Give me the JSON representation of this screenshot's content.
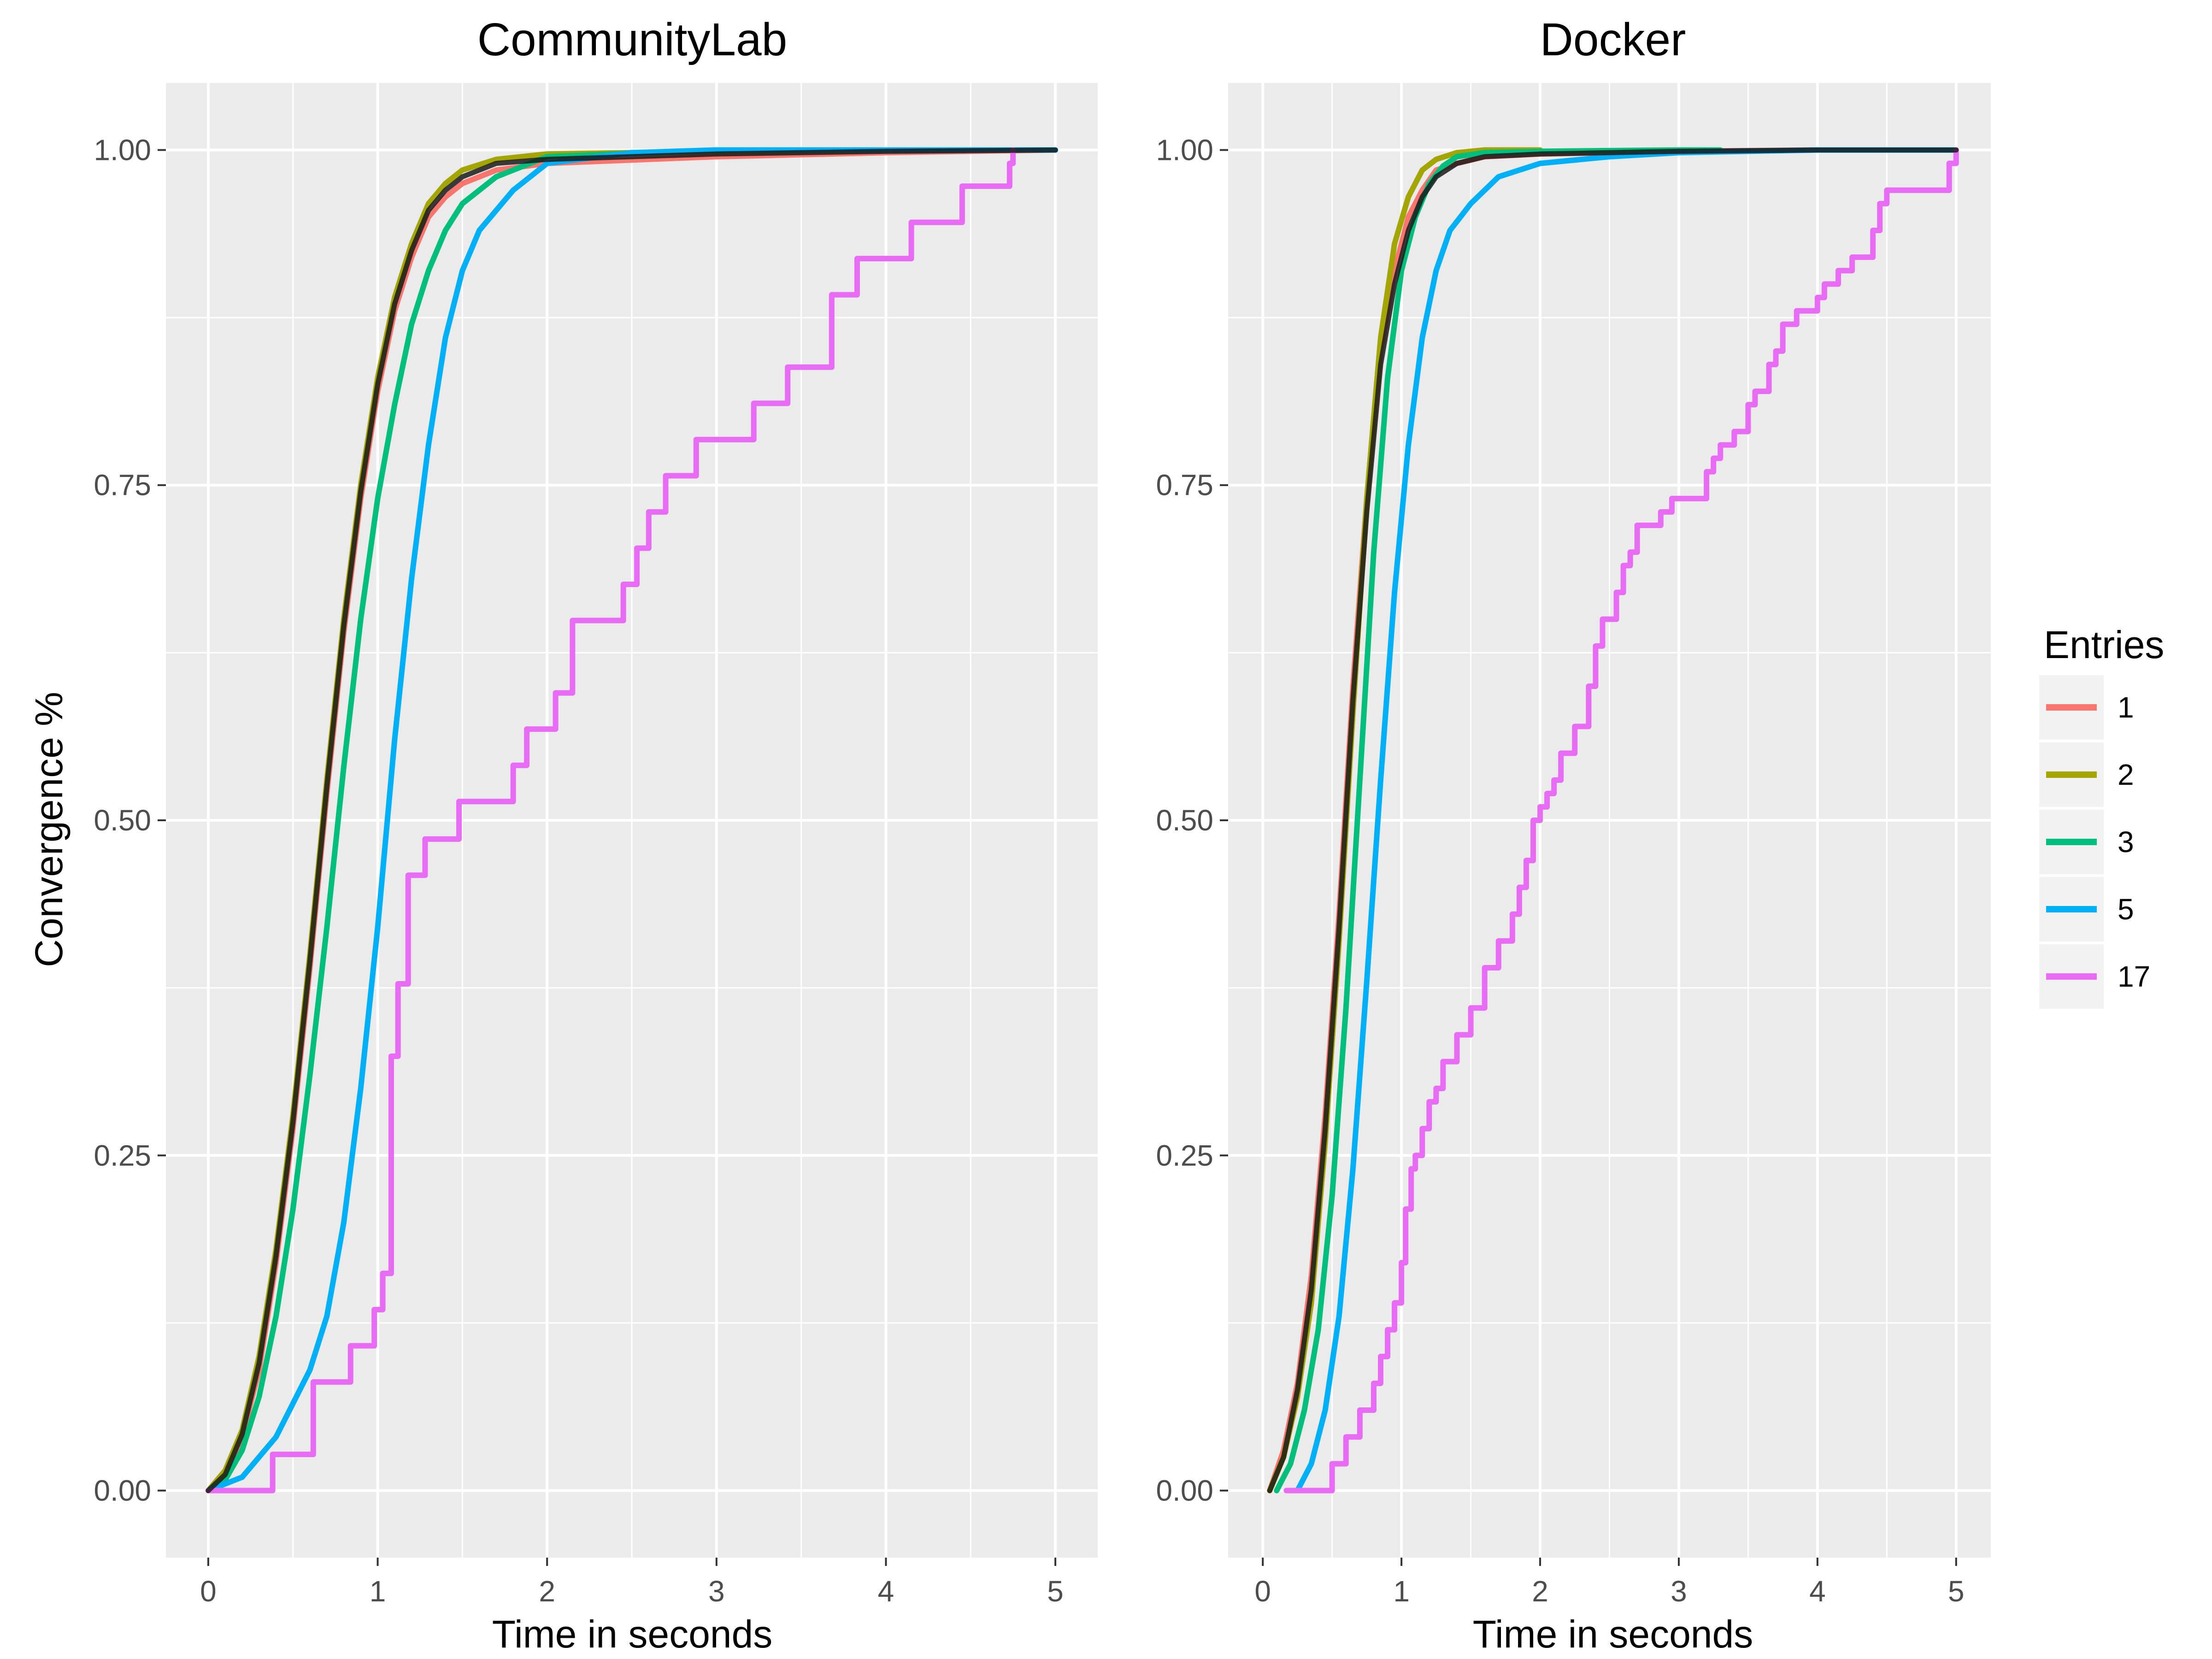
{
  "chart_data": [
    {
      "type": "line",
      "title": "CommunityLab",
      "xlabel": "Time in seconds",
      "ylabel": "Convergence %",
      "xlim": [
        -0.25,
        5.25
      ],
      "ylim": [
        -0.05,
        1.05
      ],
      "xticks": [
        0,
        1,
        2,
        3,
        4,
        5
      ],
      "yticks": [
        0.0,
        0.25,
        0.5,
        0.75,
        1.0
      ],
      "ytick_labels": [
        "0.00",
        "0.25",
        "0.50",
        "0.75",
        "1.00"
      ],
      "grid": true,
      "series": [
        {
          "name": "1",
          "x": [
            0,
            0.1,
            0.2,
            0.3,
            0.4,
            0.5,
            0.6,
            0.7,
            0.8,
            0.9,
            1.0,
            1.1,
            1.2,
            1.3,
            1.4,
            1.5,
            1.7,
            2.0,
            3.0,
            4.0,
            5.0
          ],
          "y": [
            0,
            0.01,
            0.04,
            0.09,
            0.17,
            0.27,
            0.39,
            0.52,
            0.64,
            0.74,
            0.82,
            0.88,
            0.92,
            0.95,
            0.965,
            0.975,
            0.985,
            0.99,
            0.995,
            0.998,
            1.0
          ]
        },
        {
          "name": "2",
          "x": [
            0,
            0.1,
            0.2,
            0.3,
            0.4,
            0.5,
            0.6,
            0.7,
            0.8,
            0.9,
            1.0,
            1.1,
            1.2,
            1.3,
            1.4,
            1.5,
            1.7,
            2.0,
            3.0,
            4.0,
            5.0
          ],
          "y": [
            0,
            0.015,
            0.045,
            0.1,
            0.18,
            0.28,
            0.4,
            0.53,
            0.65,
            0.75,
            0.83,
            0.89,
            0.93,
            0.96,
            0.975,
            0.985,
            0.993,
            0.997,
            0.999,
            1.0,
            1.0
          ]
        },
        {
          "name": "3",
          "x": [
            0,
            0.1,
            0.2,
            0.3,
            0.4,
            0.5,
            0.6,
            0.7,
            0.8,
            0.9,
            1.0,
            1.1,
            1.2,
            1.3,
            1.4,
            1.5,
            1.7,
            2.0,
            3.0,
            4.0,
            5.0
          ],
          "y": [
            0,
            0.008,
            0.03,
            0.07,
            0.13,
            0.21,
            0.31,
            0.42,
            0.54,
            0.65,
            0.74,
            0.81,
            0.87,
            0.91,
            0.94,
            0.96,
            0.98,
            0.995,
            1.0,
            1.0,
            1.0
          ]
        },
        {
          "name": "5",
          "x": [
            0,
            0.2,
            0.4,
            0.6,
            0.7,
            0.8,
            0.9,
            1.0,
            1.1,
            1.2,
            1.3,
            1.4,
            1.5,
            1.6,
            1.7,
            1.8,
            2.0,
            2.5,
            3.0,
            4.0,
            5.0
          ],
          "y": [
            0,
            0.01,
            0.04,
            0.09,
            0.13,
            0.2,
            0.3,
            0.42,
            0.56,
            0.68,
            0.78,
            0.86,
            0.91,
            0.94,
            0.955,
            0.97,
            0.99,
            0.998,
            1.0,
            1.0,
            1.0
          ]
        },
        {
          "name": "17",
          "step": true,
          "x": [
            0.0,
            0.38,
            0.62,
            0.84,
            0.98,
            1.03,
            1.08,
            1.12,
            1.18,
            1.28,
            1.48,
            1.8,
            1.88,
            2.05,
            2.15,
            2.45,
            2.53,
            2.6,
            2.7,
            2.88,
            3.22,
            3.42,
            3.68,
            3.83,
            4.15,
            4.45,
            4.73,
            4.75
          ],
          "y": [
            0.0,
            0.027,
            0.081,
            0.108,
            0.135,
            0.162,
            0.324,
            0.378,
            0.459,
            0.486,
            0.514,
            0.541,
            0.568,
            0.595,
            0.649,
            0.676,
            0.703,
            0.73,
            0.757,
            0.784,
            0.811,
            0.838,
            0.892,
            0.919,
            0.946,
            0.973,
            0.99,
            1.0
          ]
        },
        {
          "name": "",
          "x": [
            0,
            0.1,
            0.2,
            0.3,
            0.4,
            0.5,
            0.6,
            0.7,
            0.8,
            0.9,
            1.0,
            1.1,
            1.2,
            1.3,
            1.4,
            1.5,
            1.7,
            2.0,
            3.0,
            4.0,
            5.0
          ],
          "y": [
            0,
            0.012,
            0.042,
            0.095,
            0.175,
            0.275,
            0.395,
            0.525,
            0.645,
            0.745,
            0.825,
            0.885,
            0.925,
            0.955,
            0.97,
            0.98,
            0.99,
            0.993,
            0.997,
            0.999,
            1.0
          ]
        }
      ]
    },
    {
      "type": "line",
      "title": "Docker",
      "xlabel": "Time in seconds",
      "ylabel": "",
      "xlim": [
        -0.25,
        5.25
      ],
      "ylim": [
        -0.05,
        1.05
      ],
      "xticks": [
        0,
        1,
        2,
        3,
        4,
        5
      ],
      "yticks": [
        0.0,
        0.25,
        0.5,
        0.75,
        1.0
      ],
      "ytick_labels": [
        "0.00",
        "0.25",
        "0.50",
        "0.75",
        "1.00"
      ],
      "grid": true,
      "series": [
        {
          "name": "1",
          "x": [
            0.05,
            0.15,
            0.25,
            0.35,
            0.45,
            0.55,
            0.65,
            0.75,
            0.85,
            0.95,
            1.05,
            1.15,
            1.25,
            1.4,
            1.6,
            2.0,
            3.0,
            4.0,
            5.0
          ],
          "y": [
            0,
            0.03,
            0.08,
            0.16,
            0.28,
            0.43,
            0.6,
            0.74,
            0.85,
            0.91,
            0.95,
            0.97,
            0.985,
            0.99,
            0.995,
            0.997,
            0.999,
            1.0,
            1.0
          ]
        },
        {
          "name": "2",
          "x": [
            0.05,
            0.15,
            0.25,
            0.35,
            0.45,
            0.55,
            0.65,
            0.75,
            0.85,
            0.95,
            1.05,
            1.15,
            1.25,
            1.4,
            1.6,
            2.0
          ],
          "y": [
            0,
            0.025,
            0.07,
            0.14,
            0.26,
            0.41,
            0.58,
            0.74,
            0.86,
            0.93,
            0.965,
            0.985,
            0.993,
            0.998,
            1.0,
            1.0
          ]
        },
        {
          "name": "3",
          "x": [
            0.1,
            0.2,
            0.3,
            0.4,
            0.5,
            0.6,
            0.7,
            0.8,
            0.9,
            1.0,
            1.1,
            1.2,
            1.3,
            1.4,
            1.6,
            2.0,
            3.0,
            3.3
          ],
          "y": [
            0,
            0.02,
            0.06,
            0.12,
            0.22,
            0.36,
            0.53,
            0.7,
            0.83,
            0.91,
            0.95,
            0.975,
            0.988,
            0.995,
            0.998,
            0.999,
            1.0,
            1.0
          ]
        },
        {
          "name": "5",
          "x": [
            0.25,
            0.35,
            0.45,
            0.55,
            0.65,
            0.75,
            0.85,
            0.95,
            1.05,
            1.15,
            1.25,
            1.35,
            1.5,
            1.7,
            2.0,
            2.5,
            3.0,
            4.0,
            5.0
          ],
          "y": [
            0,
            0.02,
            0.06,
            0.13,
            0.24,
            0.38,
            0.53,
            0.67,
            0.78,
            0.86,
            0.91,
            0.94,
            0.96,
            0.98,
            0.99,
            0.995,
            0.998,
            1.0,
            1.0
          ]
        },
        {
          "name": "17",
          "step": true,
          "x": [
            0.17,
            0.5,
            0.6,
            0.7,
            0.8,
            0.85,
            0.9,
            0.95,
            1.0,
            1.03,
            1.07,
            1.1,
            1.15,
            1.2,
            1.25,
            1.3,
            1.4,
            1.5,
            1.6,
            1.65,
            1.7,
            1.8,
            1.85,
            1.9,
            1.95,
            2.0,
            2.05,
            2.1,
            2.15,
            2.25,
            2.35,
            2.4,
            2.45,
            2.55,
            2.6,
            2.65,
            2.7,
            2.8,
            2.87,
            2.95,
            3.2,
            3.25,
            3.3,
            3.4,
            3.5,
            3.55,
            3.65,
            3.7,
            3.75,
            3.85,
            4.0,
            4.05,
            4.15,
            4.25,
            4.4,
            4.45,
            4.5,
            4.95,
            5.0
          ],
          "y": [
            0.0,
            0.02,
            0.04,
            0.06,
            0.08,
            0.1,
            0.12,
            0.14,
            0.17,
            0.21,
            0.24,
            0.25,
            0.27,
            0.29,
            0.3,
            0.32,
            0.34,
            0.36,
            0.39,
            0.39,
            0.41,
            0.43,
            0.45,
            0.47,
            0.5,
            0.51,
            0.52,
            0.53,
            0.55,
            0.57,
            0.6,
            0.63,
            0.65,
            0.67,
            0.69,
            0.7,
            0.72,
            0.72,
            0.73,
            0.74,
            0.76,
            0.77,
            0.78,
            0.79,
            0.81,
            0.82,
            0.84,
            0.85,
            0.87,
            0.88,
            0.89,
            0.9,
            0.91,
            0.92,
            0.94,
            0.96,
            0.97,
            0.99,
            1.0
          ]
        },
        {
          "name": "",
          "x": [
            0.05,
            0.15,
            0.25,
            0.35,
            0.45,
            0.55,
            0.65,
            0.75,
            0.85,
            0.95,
            1.05,
            1.15,
            1.25,
            1.4,
            1.6,
            2.0,
            3.0,
            4.0,
            5.0
          ],
          "y": [
            0,
            0.025,
            0.075,
            0.15,
            0.27,
            0.42,
            0.59,
            0.73,
            0.84,
            0.9,
            0.94,
            0.965,
            0.98,
            0.99,
            0.995,
            0.997,
            0.999,
            1.0,
            1.0
          ]
        }
      ]
    }
  ],
  "legend": {
    "title": "Entries",
    "placement": "right",
    "entries": [
      {
        "label": "1",
        "color": "#F8766D"
      },
      {
        "label": "2",
        "color": "#A3A500"
      },
      {
        "label": "3",
        "color": "#00BF7D"
      },
      {
        "label": "5",
        "color": "#00B0F6"
      },
      {
        "label": "17",
        "color": "#E76BF3"
      }
    ]
  },
  "colors": {
    "1": "#F8766D",
    "2": "#A3A500",
    "3": "#00BF7D",
    "5": "#00B0F6",
    "17": "#E76BF3",
    "reference": "#1a1a1a",
    "panel_background": "#EBEBEB",
    "grid": "#FFFFFF"
  }
}
